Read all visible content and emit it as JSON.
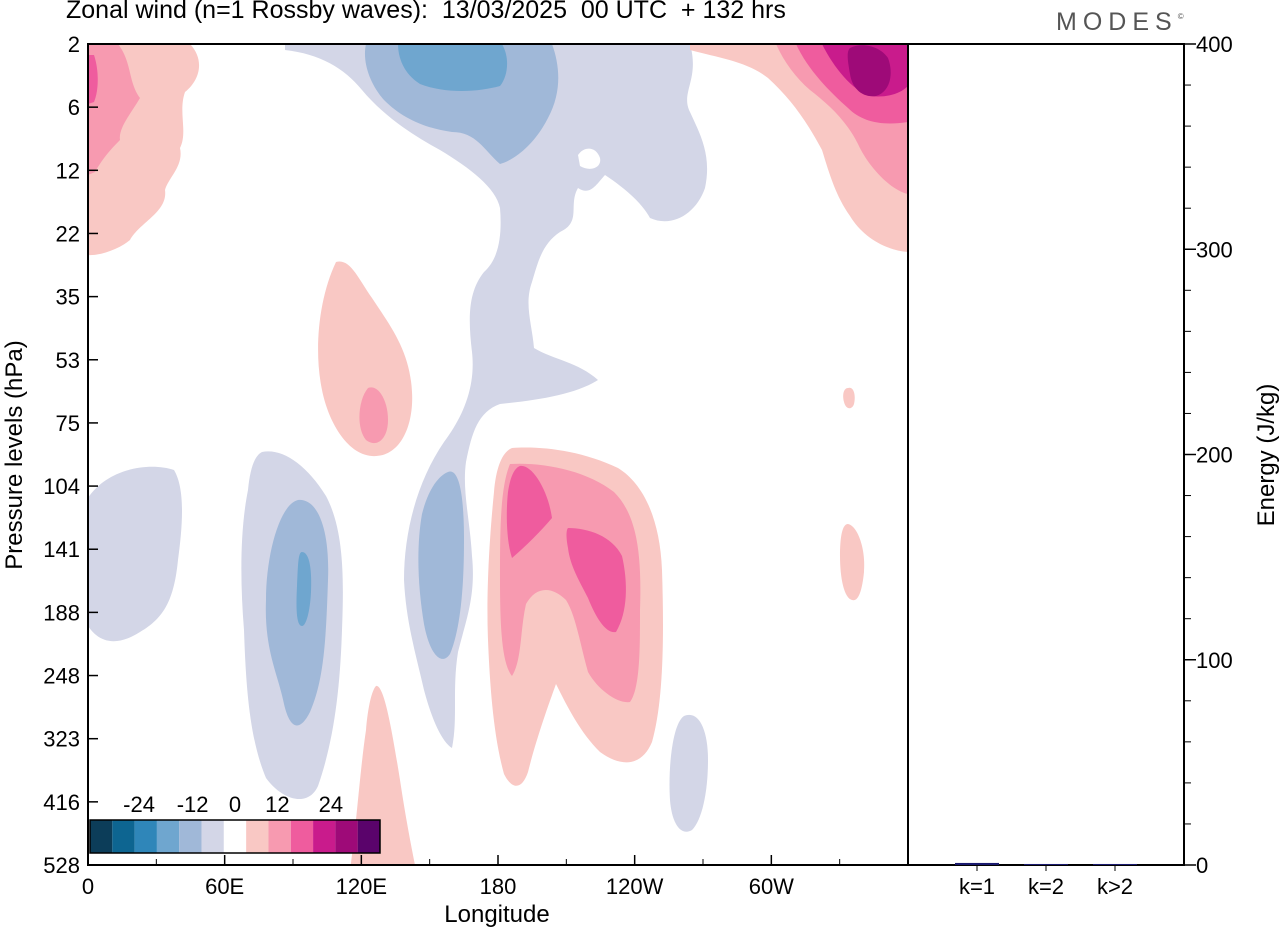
{
  "header": {
    "title": "Zonal wind (n=1 Rossby waves):  13/03/2025  00 UTC  + 132 hrs",
    "brand": "MODES",
    "brand_mark": "©"
  },
  "chart_data": [
    {
      "type": "heatmap",
      "title": "Zonal wind (n=1 Rossby waves):  13/03/2025  00 UTC  + 132 hrs",
      "xlabel": "Longitude",
      "ylabel": "Pressure levels (hPa)",
      "x_ticks": [
        "0",
        "60E",
        "120E",
        "180",
        "120W",
        "60W"
      ],
      "x_tick_degrees": [
        0,
        60,
        120,
        180,
        240,
        300
      ],
      "xlim": [
        0,
        360
      ],
      "y_levels": [
        "2",
        "6",
        "12",
        "22",
        "35",
        "53",
        "75",
        "104",
        "141",
        "188",
        "248",
        "323",
        "416",
        "528"
      ],
      "colorbar": {
        "tick_labels": [
          "-24",
          "-12",
          "0",
          "12",
          "24"
        ],
        "tick_values": [
          -24,
          -12,
          0,
          12,
          24
        ],
        "levels": [
          -30,
          -25,
          -20,
          -15,
          -10,
          -5,
          5,
          10,
          15,
          20,
          25,
          30
        ],
        "colors": [
          "#0c3d59",
          "#0d6591",
          "#2f86b9",
          "#6fa6cf",
          "#a0b8d8",
          "#d3d6e7",
          "#ffffff",
          "#f9c8c4",
          "#f79ab0",
          "#ef5c9e",
          "#c91b8c",
          "#9e0a78",
          "#5a036b"
        ]
      },
      "features": [
        {
          "sign": "negative",
          "intensity": -18,
          "lon": 182,
          "level": "2"
        },
        {
          "sign": "positive",
          "intensity": 28,
          "lon": 347,
          "level": "2"
        },
        {
          "sign": "positive",
          "intensity": 14,
          "lon": 0,
          "level": "2"
        },
        {
          "sign": "positive",
          "intensity": 10,
          "lon": 125,
          "level": "75"
        },
        {
          "sign": "positive",
          "intensity": 20,
          "lon": 190,
          "level": "141"
        },
        {
          "sign": "positive",
          "intensity": 20,
          "lon": 210,
          "level": "188"
        },
        {
          "sign": "negative",
          "intensity": -12,
          "lon": 95,
          "level": "188"
        },
        {
          "sign": "negative",
          "intensity": -8,
          "lon": 153,
          "level": "188"
        },
        {
          "sign": "negative",
          "intensity": -5,
          "lon": 30,
          "level": "141"
        },
        {
          "sign": "negative",
          "intensity": -5,
          "lon": 267,
          "level": "323"
        },
        {
          "sign": "positive",
          "intensity": 6,
          "lon": 336,
          "level": "141"
        }
      ]
    },
    {
      "type": "bar",
      "categories": [
        "k=1",
        "k=2",
        "k>2"
      ],
      "values": [
        1,
        0.5,
        0.5
      ],
      "ylabel": "Energy (J/kg)",
      "ylim": [
        0,
        400
      ],
      "y_ticks": [
        0,
        100,
        200,
        300,
        400
      ],
      "bar_color": "#1a1a6e"
    }
  ]
}
